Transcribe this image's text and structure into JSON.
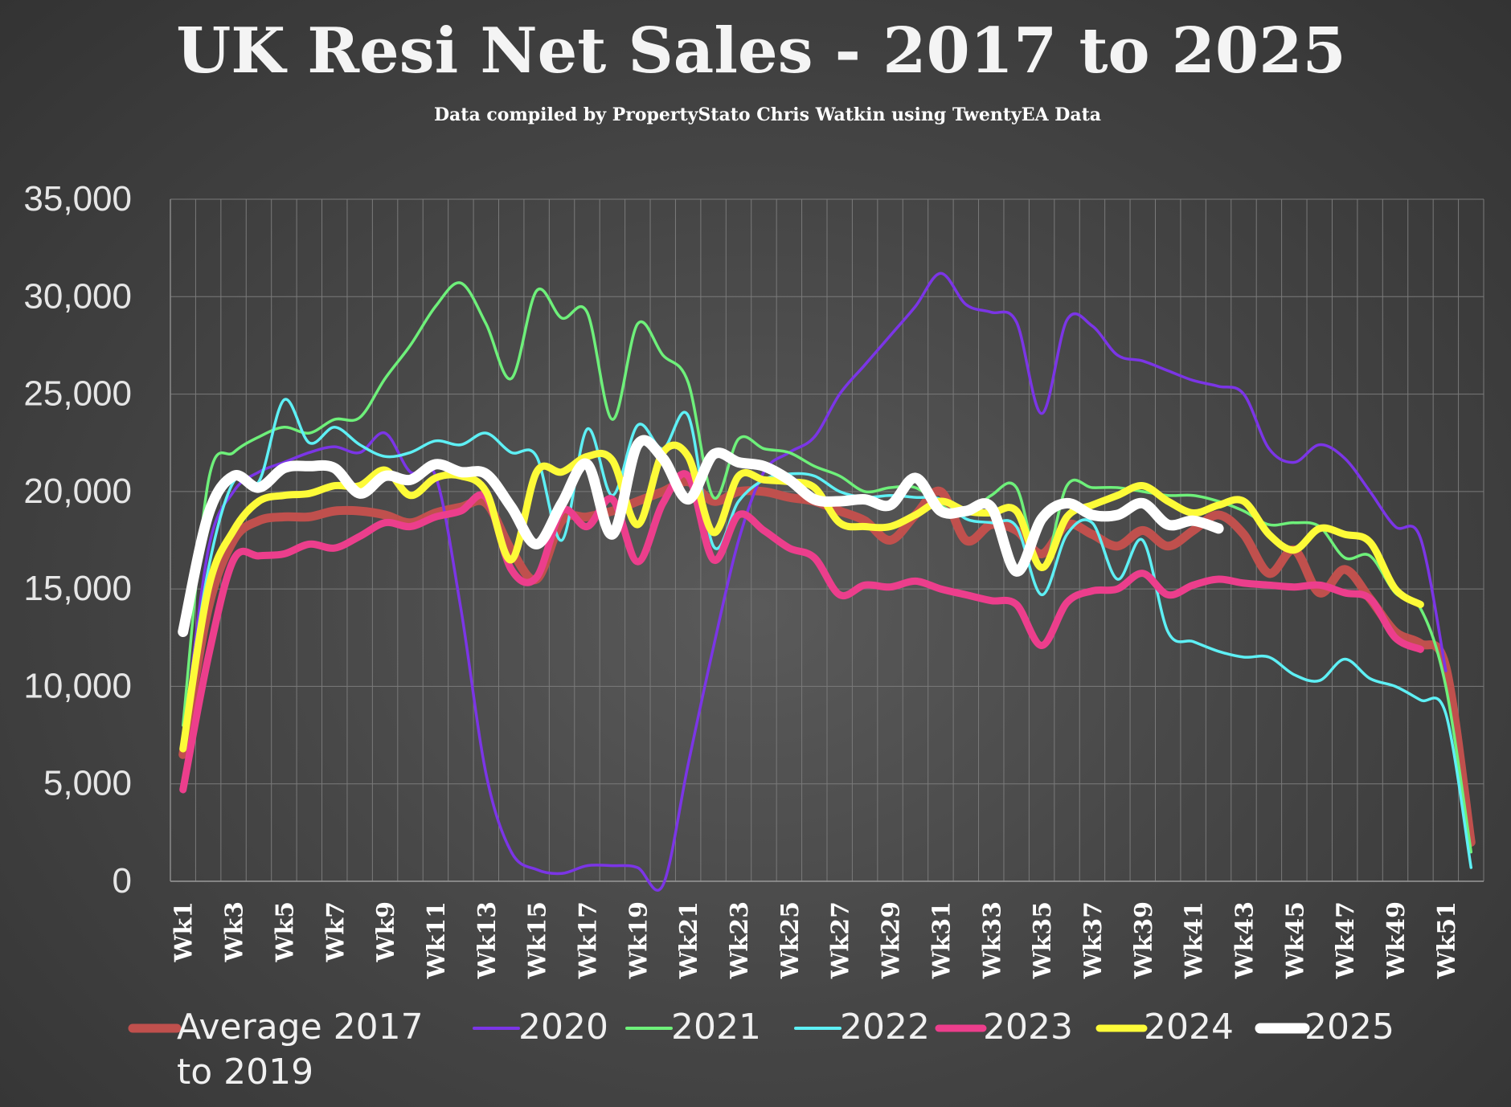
{
  "chart_data": {
    "type": "line",
    "title": "UK  Resi Net Sales - 2017 to 2025",
    "subtitle": "Data compiled by PropertyStato Chris Watkin using TwentyEA Data",
    "xlabel": "",
    "ylabel": "",
    "ylim": [
      0,
      35000
    ],
    "yticks": [
      0,
      5000,
      10000,
      15000,
      20000,
      25000,
      30000,
      35000
    ],
    "ytick_labels": [
      "0",
      "5,000",
      "10,000",
      "15,000",
      "20,000",
      "25,000",
      "30,000",
      "35,000"
    ],
    "grid": true,
    "legend": "bottom",
    "categories": [
      "Wk1",
      "Wk2",
      "Wk3",
      "Wk4",
      "Wk5",
      "Wk6",
      "Wk7",
      "Wk8",
      "Wk9",
      "Wk10",
      "Wk11",
      "Wk12",
      "Wk13",
      "Wk14",
      "Wk15",
      "Wk16",
      "Wk17",
      "Wk18",
      "Wk19",
      "Wk20",
      "Wk21",
      "Wk22",
      "Wk23",
      "Wk24",
      "Wk25",
      "Wk26",
      "Wk27",
      "Wk28",
      "Wk29",
      "Wk30",
      "Wk31",
      "Wk32",
      "Wk33",
      "Wk34",
      "Wk35",
      "Wk36",
      "Wk37",
      "Wk38",
      "Wk39",
      "Wk40",
      "Wk41",
      "Wk42",
      "Wk43",
      "Wk44",
      "Wk45",
      "Wk46",
      "Wk47",
      "Wk48",
      "Wk49",
      "Wk50",
      "Wk51",
      "Wk52"
    ],
    "xtick_labels": [
      "Wk1",
      "Wk3",
      "Wk5",
      "Wk7",
      "Wk9",
      "Wk11",
      "Wk13",
      "Wk15",
      "Wk17",
      "Wk19",
      "Wk21",
      "Wk23",
      "Wk25",
      "Wk27",
      "Wk29",
      "Wk31",
      "Wk33",
      "Wk35",
      "Wk37",
      "Wk39",
      "Wk41",
      "Wk43",
      "Wk45",
      "Wk47",
      "Wk49",
      "Wk51"
    ],
    "series": [
      {
        "name": "Average 2017 to 2019",
        "legend_lines": [
          "Average 2017",
          "to 2019"
        ],
        "color": "#c0504d",
        "width": 11,
        "values": [
          6500,
          14000,
          17500,
          18500,
          18700,
          18700,
          19000,
          19000,
          18800,
          18400,
          18900,
          19200,
          19400,
          17000,
          15500,
          18500,
          18700,
          19000,
          19500,
          20000,
          20500,
          19500,
          20000,
          20000,
          19700,
          19500,
          19000,
          18500,
          17500,
          18800,
          20000,
          17500,
          18300,
          18000,
          16800,
          18300,
          17800,
          17200,
          18000,
          17200,
          18000,
          18800,
          17800,
          15800,
          17000,
          14800,
          16000,
          14500,
          12800,
          12200,
          11000,
          2000
        ]
      },
      {
        "name": "2020",
        "color": "#7b35e6",
        "width": 3.5,
        "values": [
          7000,
          17000,
          20000,
          21000,
          21500,
          22000,
          22300,
          22000,
          23000,
          21000,
          20800,
          14000,
          5500,
          1500,
          600,
          400,
          800,
          800,
          700,
          -200,
          6000,
          12000,
          17500,
          21000,
          22000,
          22800,
          25000,
          26500,
          28000,
          29500,
          31200,
          29600,
          29200,
          28700,
          24000,
          28800,
          28500,
          27000,
          26700,
          26200,
          25700,
          25400,
          25000,
          22200,
          21500,
          22400,
          21700,
          20000,
          18200,
          17600,
          10800,
          null
        ]
      },
      {
        "name": "2021",
        "color": "#6ef07a",
        "width": 3.5,
        "values": [
          8000,
          20500,
          22000,
          22800,
          23300,
          23000,
          23700,
          23800,
          25800,
          27500,
          29500,
          30700,
          28600,
          25800,
          30300,
          28900,
          29200,
          23700,
          28600,
          27000,
          25600,
          19700,
          22700,
          22200,
          22000,
          21300,
          20800,
          20000,
          20200,
          20200,
          19300,
          18800,
          19800,
          20200,
          16000,
          20300,
          20200,
          20200,
          20000,
          19800,
          19800,
          19500,
          19000,
          18300,
          18400,
          18200,
          16600,
          16700,
          14800,
          14000,
          10000,
          1500
        ]
      },
      {
        "name": "2022",
        "color": "#5ef0f5",
        "width": 3.5,
        "values": [
          7500,
          16000,
          20500,
          20500,
          24700,
          22500,
          23300,
          22400,
          21800,
          22000,
          22600,
          22400,
          23000,
          22000,
          21800,
          17500,
          23200,
          19800,
          23400,
          22200,
          23900,
          17200,
          19500,
          20600,
          20900,
          20800,
          20000,
          19700,
          19800,
          19700,
          19600,
          18600,
          18400,
          18200,
          14700,
          17800,
          18400,
          15500,
          17500,
          12800,
          12300,
          11800,
          11500,
          11500,
          10600,
          10300,
          11400,
          10400,
          10000,
          9300,
          8600,
          700
        ]
      },
      {
        "name": "2023",
        "color": "#ec3e8c",
        "width": 9,
        "values": [
          4700,
          11500,
          16500,
          16700,
          16800,
          17300,
          17100,
          17700,
          18400,
          18200,
          18700,
          19000,
          19700,
          16000,
          15600,
          19000,
          18200,
          19600,
          16400,
          19400,
          20800,
          16500,
          18800,
          18000,
          17100,
          16600,
          14700,
          15200,
          15100,
          15400,
          15000,
          14700,
          14400,
          14200,
          12100,
          14300,
          14900,
          15000,
          15800,
          14700,
          15200,
          15500,
          15300,
          15200,
          15100,
          15200,
          14800,
          14500,
          12500,
          11900,
          null,
          null
        ]
      },
      {
        "name": "2024",
        "color": "#fdfb38",
        "width": 9,
        "values": [
          6800,
          15000,
          18000,
          19500,
          19800,
          19900,
          20300,
          20300,
          21100,
          19800,
          20700,
          20800,
          20000,
          16500,
          21000,
          21000,
          21800,
          21600,
          18300,
          22000,
          21800,
          17900,
          20800,
          20600,
          20500,
          20200,
          18400,
          18200,
          18200,
          18800,
          19500,
          19000,
          18900,
          19000,
          16100,
          18700,
          19300,
          19800,
          20300,
          19500,
          18900,
          19300,
          19500,
          17800,
          17000,
          18100,
          17800,
          17400,
          15000,
          14200,
          null,
          null
        ]
      },
      {
        "name": "2025",
        "color": "#ffffff",
        "width": 13,
        "values": [
          12800,
          18800,
          20800,
          20200,
          21200,
          21300,
          21200,
          19900,
          20800,
          20600,
          21400,
          21000,
          20900,
          19200,
          17300,
          19400,
          21400,
          17800,
          22400,
          21700,
          19600,
          21900,
          21500,
          21300,
          20600,
          19600,
          19500,
          19600,
          19300,
          20700,
          19000,
          19000,
          19200,
          15900,
          18600,
          19400,
          18800,
          18800,
          19400,
          18300,
          18500,
          18100,
          null,
          null,
          null,
          null,
          null,
          null,
          null,
          null,
          null,
          null
        ]
      }
    ]
  }
}
